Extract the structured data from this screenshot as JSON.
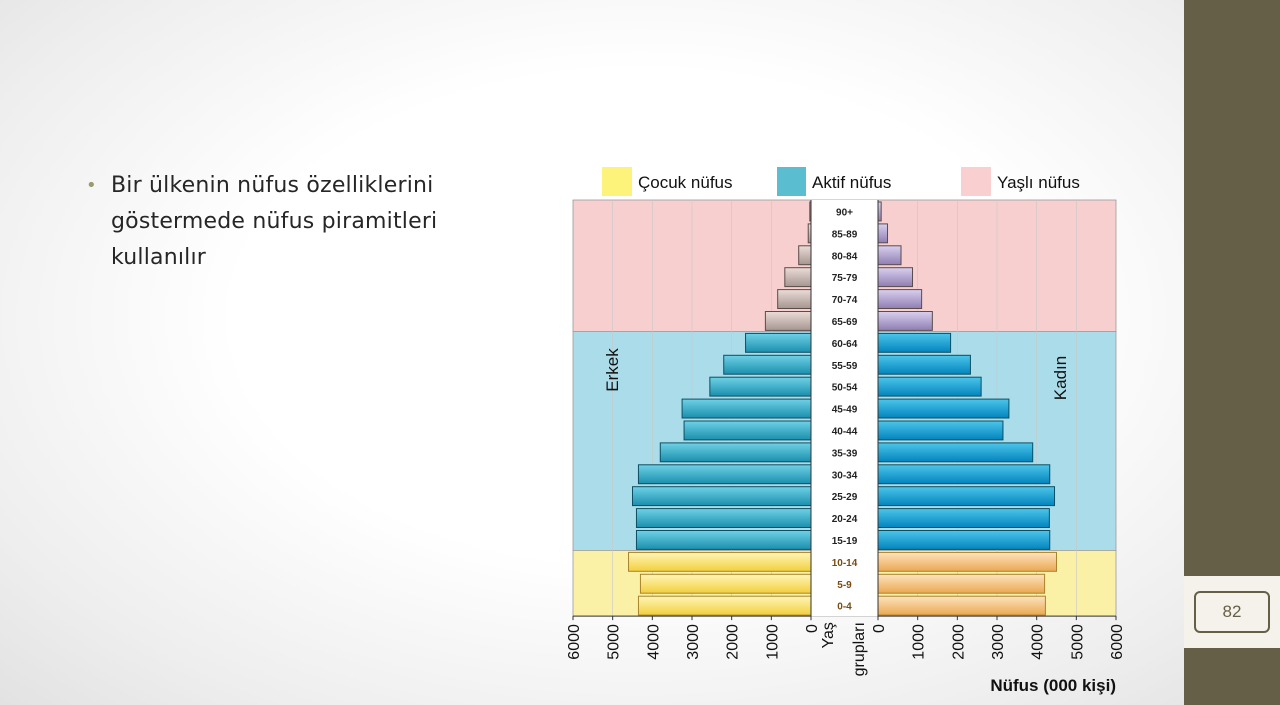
{
  "slide": {
    "bullet_text": "Bir ülkenin nüfus özelliklerini göstermede nüfus piramitleri kullanılır",
    "slide_number": "82"
  },
  "colors": {
    "sidebar": "#665f47",
    "child_band": "#fbf1a6",
    "active_band": "#aadcea",
    "elderly_band": "#f8cfcf",
    "legend_child": "#fdf27a",
    "legend_active": "#5bbdd0",
    "legend_elderly": "#f9cfcf"
  },
  "chart_data": {
    "type": "bar",
    "subtype": "population-pyramid",
    "legend": [
      "Çocuk nüfus",
      "Aktif nüfus",
      "Yaşlı nüfus"
    ],
    "left_label": "Erkek",
    "right_label": "Kadın",
    "center_axis_label": "Yaş grupları",
    "xlabel": "Nüfus (000 kişi)",
    "xlim": [
      0,
      6000
    ],
    "x_ticks": [
      "6000",
      "5000",
      "4000",
      "3000",
      "2000",
      "1000",
      "0"
    ],
    "x_ticks_right": [
      "0",
      "1000",
      "2000",
      "3000",
      "4000",
      "5000",
      "6000"
    ],
    "categories": [
      "90+",
      "85-89",
      "80-84",
      "75-79",
      "70-74",
      "65-69",
      "60-64",
      "55-59",
      "50-54",
      "45-49",
      "40-44",
      "35-39",
      "30-34",
      "25-29",
      "20-24",
      "15-19",
      "10-14",
      "5-9",
      "0-4"
    ],
    "groups": [
      "yasli",
      "yasli",
      "yasli",
      "yasli",
      "yasli",
      "yasli",
      "aktif",
      "aktif",
      "aktif",
      "aktif",
      "aktif",
      "aktif",
      "aktif",
      "aktif",
      "aktif",
      "aktif",
      "cocuk",
      "cocuk",
      "cocuk"
    ],
    "series": [
      {
        "name": "Erkek",
        "values": [
          30,
          70,
          310,
          660,
          840,
          1150,
          1650,
          2200,
          2550,
          3250,
          3200,
          3800,
          4350,
          4500,
          4400,
          4400,
          4600,
          4300,
          4350
        ]
      },
      {
        "name": "Kadın",
        "values": [
          80,
          240,
          580,
          870,
          1100,
          1370,
          1830,
          2330,
          2600,
          3300,
          3150,
          3900,
          4330,
          4450,
          4320,
          4330,
          4500,
          4200,
          4220
        ]
      }
    ],
    "grid": true
  }
}
